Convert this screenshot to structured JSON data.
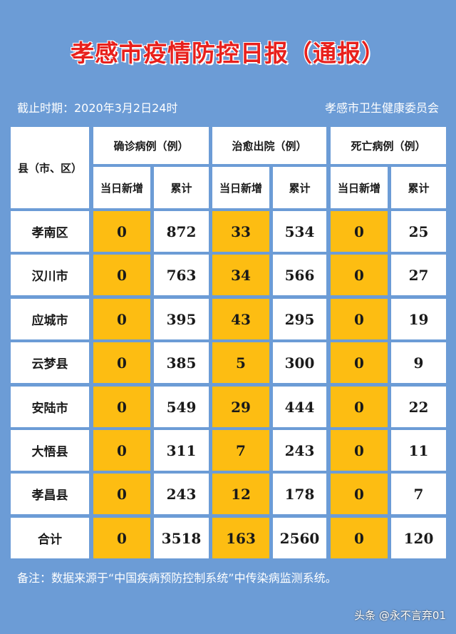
{
  "title": "孝感市疫情防控日报（通报）",
  "cutoff": "截止时期：2020年3月2日24时",
  "issuer": "孝感市卫生健康委员会",
  "header": {
    "region": "县（市、区）",
    "confirmed": "确诊病例（例）",
    "cured": "治愈出院（例）",
    "deaths": "死亡病例（例）",
    "new_today": "当日新增",
    "total": "累计"
  },
  "rows": [
    {
      "name": "孝南区",
      "c_new": "0",
      "c_total": "872",
      "r_new": "33",
      "r_total": "534",
      "d_new": "0",
      "d_total": "25"
    },
    {
      "name": "汉川市",
      "c_new": "0",
      "c_total": "763",
      "r_new": "34",
      "r_total": "566",
      "d_new": "0",
      "d_total": "27"
    },
    {
      "name": "应城市",
      "c_new": "0",
      "c_total": "395",
      "r_new": "43",
      "r_total": "295",
      "d_new": "0",
      "d_total": "19"
    },
    {
      "name": "云梦县",
      "c_new": "0",
      "c_total": "385",
      "r_new": "5",
      "r_total": "300",
      "d_new": "0",
      "d_total": "9"
    },
    {
      "name": "安陆市",
      "c_new": "0",
      "c_total": "549",
      "r_new": "29",
      "r_total": "444",
      "d_new": "0",
      "d_total": "22"
    },
    {
      "name": "大悟县",
      "c_new": "0",
      "c_total": "311",
      "r_new": "7",
      "r_total": "243",
      "d_new": "0",
      "d_total": "11"
    },
    {
      "name": "孝昌县",
      "c_new": "0",
      "c_total": "243",
      "r_new": "12",
      "r_total": "178",
      "d_new": "0",
      "d_total": "7"
    },
    {
      "name": "合计",
      "c_new": "0",
      "c_total": "3518",
      "r_new": "163",
      "r_total": "2560",
      "d_new": "0",
      "d_total": "120"
    }
  ],
  "note": "备注：数据来源于“中国疾病预防控制系统”中传染病监测系统。",
  "footer": "头条 @永不言弃01",
  "colors": {
    "background": "#6c9cd6",
    "highlight": "#fdbd12",
    "title": "#e8201c"
  }
}
